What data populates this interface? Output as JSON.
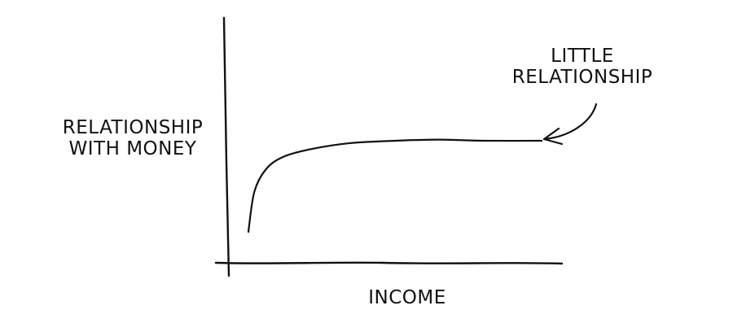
{
  "chart_data": {
    "type": "line",
    "title": "",
    "xlabel": "INCOME",
    "ylabel_lines": [
      "RELATIONSHIP",
      "WITH MONEY"
    ],
    "grid": false,
    "legend": "none",
    "x_ticks": "none",
    "y_ticks": "none",
    "series": [
      {
        "shape": "rises steeply at low income, then flattens into a near-plateau",
        "points": [
          [
            0.0,
            0.2
          ],
          [
            0.02,
            0.55
          ],
          [
            0.06,
            0.75
          ],
          [
            0.12,
            0.86
          ],
          [
            0.22,
            0.93
          ],
          [
            0.35,
            0.98
          ],
          [
            0.5,
            1.0
          ],
          [
            0.65,
            1.01
          ],
          [
            0.8,
            1.0
          ],
          [
            1.0,
            1.0
          ]
        ]
      }
    ],
    "annotation": {
      "lines": [
        "LITTLE",
        "RELATIONSHIP"
      ],
      "points_to": "plateau-end"
    }
  },
  "colors": {
    "ink": "#111111",
    "background": "#ffffff"
  }
}
